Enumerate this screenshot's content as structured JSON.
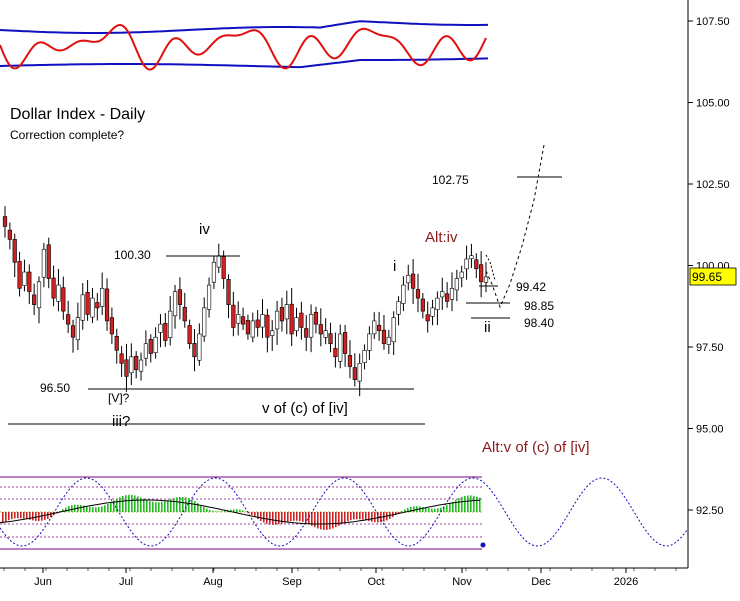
{
  "chart_data": {
    "type": "candlestick",
    "title": "Dollar Index - Daily",
    "subtitle": "Correction complete?",
    "colors": {
      "up": "#ffffff",
      "down": "#cc2222",
      "wick": "#000000",
      "oscillator": "#e01010",
      "band": "#1010c0",
      "alt_label": "#8b1a1a",
      "current_price_bg": "#ffff00"
    },
    "y_axis": {
      "side": "right",
      "range": [
        91.0,
        108.5
      ],
      "ticks": [
        "107.50",
        "105.00",
        "102.50",
        "100.00",
        "97.50",
        "95.00",
        "92.50"
      ]
    },
    "x_axis": {
      "ticks": [
        "Jun",
        "Jul",
        "Aug",
        "Sep",
        "Oct",
        "Nov",
        "Dec",
        "2026"
      ]
    },
    "current_price": "99.65",
    "price_series": [
      101.2,
      100.8,
      100.1,
      99.3,
      99.8,
      99.2,
      98.8,
      99.5,
      100.5,
      99.6,
      99.0,
      99.4,
      98.6,
      98.2,
      97.8,
      98.4,
      99.1,
      98.5,
      99.0,
      98.7,
      99.3,
      98.3,
      97.9,
      97.4,
      97.0,
      96.6,
      97.2,
      96.8,
      97.1,
      97.6,
      97.3,
      97.8,
      98.2,
      97.7,
      98.6,
      99.2,
      98.8,
      98.3,
      97.6,
      97.2,
      97.9,
      98.7,
      99.4,
      100.1,
      100.3,
      99.6,
      98.8,
      98.1,
      98.5,
      98.2,
      97.9,
      98.3,
      98.1,
      98.5,
      97.8,
      98.0,
      98.6,
      98.3,
      98.8,
      97.9,
      98.4,
      98.1,
      97.8,
      98.5,
      98.2,
      97.9,
      98.0,
      97.6,
      97.2,
      97.9,
      97.3,
      96.9,
      96.5,
      97.0,
      97.4,
      97.9,
      98.3,
      98.0,
      97.6,
      97.8,
      98.4,
      98.9,
      99.4,
      99.7,
      99.3,
      99.0,
      98.6,
      98.3,
      98.7,
      99.0,
      99.2,
      98.9,
      99.3,
      99.6,
      99.8,
      100.2,
      100.3,
      99.9,
      99.5,
      99.65
    ],
    "series": [
      {
        "name": "",
        "kind": "oscillator",
        "color": "#e01010"
      },
      {
        "name": "",
        "kind": "band",
        "color": "#1010c0"
      },
      {
        "name": "",
        "kind": "histogram"
      },
      {
        "name": "",
        "kind": "cycle",
        "style": "dotted"
      }
    ],
    "annotations": {
      "levels": [
        {
          "label": "102.75",
          "value": 102.75
        },
        {
          "label": "100.30",
          "value": 100.3
        },
        {
          "label": "99.42",
          "value": 99.42
        },
        {
          "label": "98.85",
          "value": 98.85
        },
        {
          "label": "98.40",
          "value": 98.4
        },
        {
          "label": "96.50",
          "value": 96.5
        }
      ],
      "waves": [
        {
          "text": "iv",
          "alt": false
        },
        {
          "text": "i",
          "alt": false
        },
        {
          "text": "ii",
          "alt": false
        },
        {
          "text": "[V]?",
          "alt": false
        },
        {
          "text": "iii?",
          "alt": false
        },
        {
          "text": "v of (c) of [iv]",
          "alt": false
        },
        {
          "text": "Alt:iv",
          "alt": true
        },
        {
          "text": "Alt:v of (c) of [iv]",
          "alt": true
        }
      ]
    }
  }
}
